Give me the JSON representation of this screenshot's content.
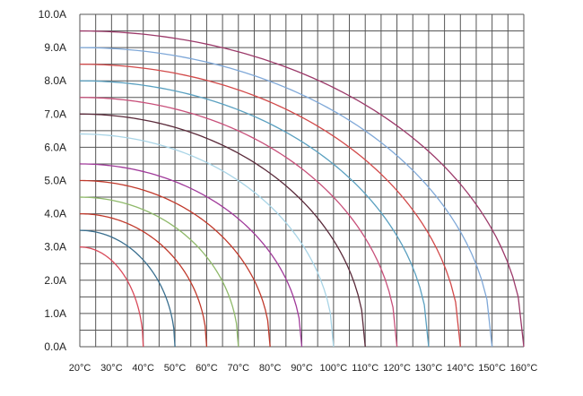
{
  "chart_data": {
    "type": "line",
    "title": "",
    "xlabel": "",
    "ylabel": "",
    "xlim": [
      20,
      160
    ],
    "ylim": [
      0,
      10
    ],
    "grid": true,
    "x_grid_step": 5,
    "y_grid_step": 0.5,
    "x_ticks": [
      20,
      30,
      40,
      50,
      60,
      70,
      80,
      90,
      100,
      110,
      120,
      130,
      140,
      150,
      160
    ],
    "x_tick_labels": [
      "20°C",
      "30°C",
      "40°C",
      "50°C",
      "60°C",
      "70°C",
      "80°C",
      "90°C",
      "100°C",
      "110°C",
      "120°C",
      "130°C",
      "140°C",
      "150°C",
      "160°C"
    ],
    "y_ticks": [
      0,
      1,
      2,
      3,
      4,
      5,
      6,
      7,
      8,
      9,
      10
    ],
    "y_tick_labels": [
      "0.0A",
      "1.0A",
      "2.0A",
      "3.0A",
      "4.0A",
      "5.0A",
      "6.0A",
      "7.0A",
      "8.0A",
      "9.0A",
      "10.0A"
    ],
    "series": [
      {
        "color": "#d94a5a",
        "x_start": 20,
        "current_at_start": 3.0,
        "x_end": 40
      },
      {
        "color": "#3a6f8f",
        "x_start": 20,
        "current_at_start": 3.5,
        "x_end": 50
      },
      {
        "color": "#c0392b",
        "x_start": 20,
        "current_at_start": 4.0,
        "x_end": 60
      },
      {
        "color": "#8fb96a",
        "x_start": 20,
        "current_at_start": 4.5,
        "x_end": 70
      },
      {
        "color": "#c0392b",
        "x_start": 20,
        "current_at_start": 5.0,
        "x_end": 80
      },
      {
        "color": "#a03a9a",
        "x_start": 20,
        "current_at_start": 5.5,
        "x_end": 90
      },
      {
        "color": "#a8d4e6",
        "x_start": 20,
        "current_at_start": 6.4,
        "x_end": 100
      },
      {
        "color": "#5a2a3a",
        "x_start": 20,
        "current_at_start": 7.0,
        "x_end": 110
      },
      {
        "color": "#c8507a",
        "x_start": 20,
        "current_at_start": 7.5,
        "x_end": 120
      },
      {
        "color": "#5aa0c0",
        "x_start": 20,
        "current_at_start": 8.0,
        "x_end": 130
      },
      {
        "color": "#d24a4a",
        "x_start": 20,
        "current_at_start": 8.5,
        "x_end": 140
      },
      {
        "color": "#7fa8d8",
        "x_start": 20,
        "current_at_start": 9.0,
        "x_end": 150
      },
      {
        "color": "#9c3a6a",
        "x_start": 20,
        "current_at_start": 9.5,
        "x_end": 160
      }
    ],
    "colors": {
      "grid": "#555555",
      "tick_text": "#222222",
      "background": "#ffffff"
    }
  }
}
